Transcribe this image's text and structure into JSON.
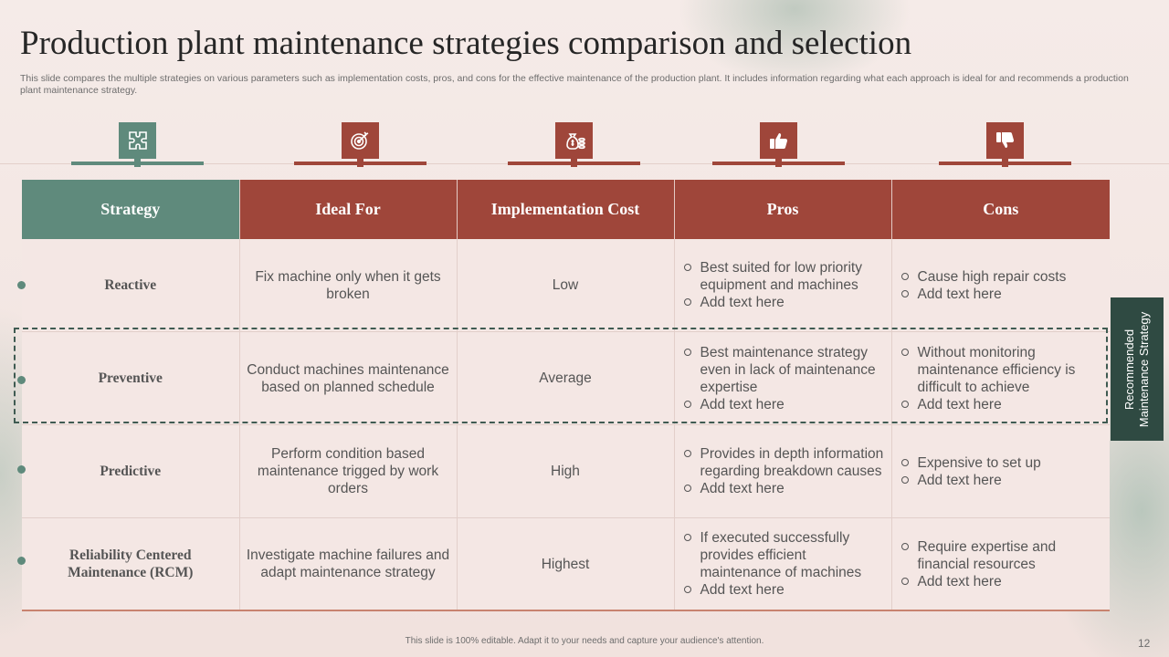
{
  "slide": {
    "title": "Production plant maintenance strategies comparison and selection",
    "subtitle": "This slide compares the multiple strategies on various parameters such as implementation costs, pros, and cons for the effective maintenance of the production plant. It includes information regarding what each approach is ideal for and recommends a production plant maintenance strategy.",
    "footer": "This slide is 100% editable. Adapt it to your needs and capture your audience's attention.",
    "page_number": "12"
  },
  "icons": [
    {
      "name": "strategy-puzzle-icon",
      "color": "#5f8a7c"
    },
    {
      "name": "target-gear-icon",
      "color": "#9f463a"
    },
    {
      "name": "money-bag-coins-icon",
      "color": "#9f463a"
    },
    {
      "name": "thumbs-up-icon",
      "color": "#9f463a"
    },
    {
      "name": "thumbs-down-icon",
      "color": "#9f463a"
    }
  ],
  "table": {
    "headers": [
      "Strategy",
      "Ideal For",
      "Implementation Cost",
      "Pros",
      "Cons"
    ],
    "rows": [
      {
        "strategy": "Reactive",
        "ideal_for": "Fix machine only when it gets broken",
        "cost": "Low",
        "pros": [
          "Best suited for low priority equipment and machines",
          "Add text here"
        ],
        "cons": [
          "Cause high repair costs",
          "Add text here"
        ]
      },
      {
        "strategy": "Preventive",
        "ideal_for": "Conduct machines maintenance based on planned schedule",
        "cost": "Average",
        "pros": [
          "Best maintenance strategy even in lack of maintenance expertise",
          "Add text here"
        ],
        "cons": [
          "Without monitoring maintenance efficiency is difficult to achieve",
          "Add text here"
        ]
      },
      {
        "strategy": "Predictive",
        "ideal_for": "Perform condition based maintenance trigged by work orders",
        "cost": "High",
        "pros": [
          "Provides in depth information regarding breakdown causes",
          "Add text here"
        ],
        "cons": [
          "Expensive to set up",
          "Add text here"
        ]
      },
      {
        "strategy_line1": "Reliability Centered",
        "strategy_line2": "Maintenance (RCM)",
        "ideal_for": "Investigate machine failures and adapt maintenance strategy",
        "cost": "Highest",
        "pros": [
          "If executed successfully provides efficient maintenance of machines",
          "Add text here"
        ],
        "cons": [
          "Require expertise and financial resources",
          "Add text here"
        ]
      }
    ]
  },
  "recommended": {
    "line1": "Recommended",
    "line2": "Maintenance Strategy"
  },
  "colors": {
    "green": "#5f8a7c",
    "red": "#9f463a",
    "dark_green": "#2f4a42"
  }
}
